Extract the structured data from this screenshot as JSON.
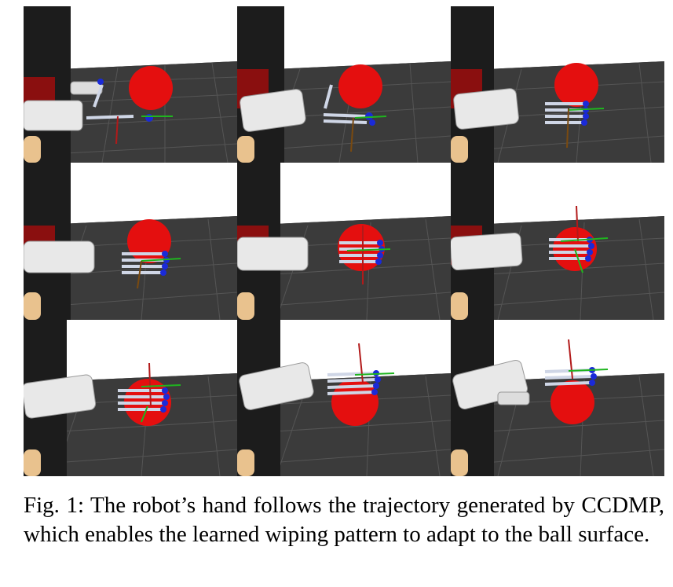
{
  "figure": {
    "caption": "Fig. 1: The robot’s hand follows the trajectory generated by CCDMP, which enables the learned wiping pattern to adapt to the ball surface.",
    "panel_count": 9,
    "grid": {
      "rows": 3,
      "cols": 3
    },
    "ball_color": "#e40f0f",
    "floor_color": "#3a3a3a",
    "sky_color": "#ffffff"
  }
}
